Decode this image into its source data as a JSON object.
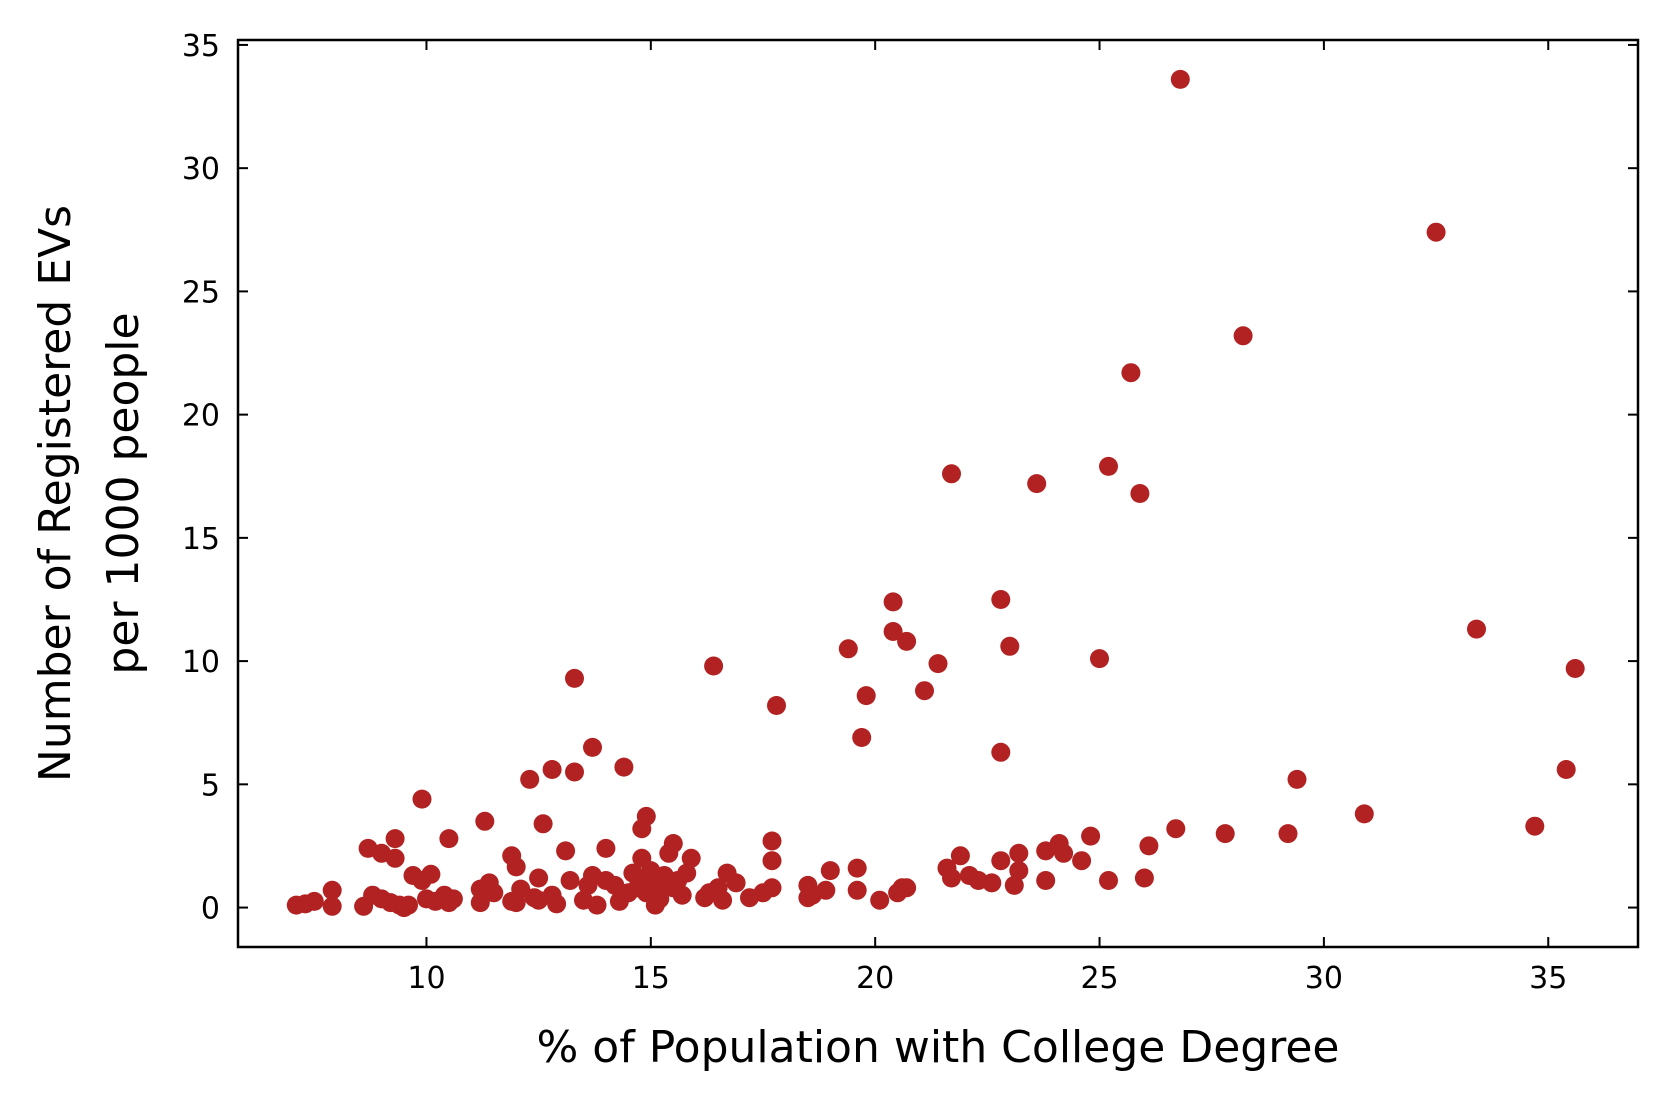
{
  "chart_data": {
    "type": "scatter",
    "title": "",
    "xlabel": "% of Population with College Degree",
    "ylabel_lines": [
      "Number of Registered EVs",
      "per 1000 people"
    ],
    "xlim": [
      5.8,
      37.0
    ],
    "ylim": [
      -1.6,
      35.2
    ],
    "xticks": [
      10,
      15,
      20,
      25,
      30,
      35
    ],
    "yticks": [
      0,
      5,
      10,
      15,
      20,
      25,
      30,
      35
    ],
    "grid": false,
    "marker_color": "#b22222",
    "points": [
      [
        7.1,
        0.1
      ],
      [
        7.3,
        0.15
      ],
      [
        7.5,
        0.25
      ],
      [
        7.9,
        0.7
      ],
      [
        7.9,
        0.05
      ],
      [
        8.6,
        0.05
      ],
      [
        8.7,
        2.4
      ],
      [
        8.8,
        0.5
      ],
      [
        9.0,
        2.2
      ],
      [
        9.0,
        0.35
      ],
      [
        9.2,
        0.2
      ],
      [
        9.3,
        2.0
      ],
      [
        9.3,
        2.8
      ],
      [
        9.4,
        0.1
      ],
      [
        9.5,
        0.0
      ],
      [
        9.6,
        0.1
      ],
      [
        9.7,
        1.3
      ],
      [
        9.9,
        4.4
      ],
      [
        9.9,
        1.1
      ],
      [
        10.0,
        0.35
      ],
      [
        10.1,
        1.35
      ],
      [
        10.2,
        0.25
      ],
      [
        10.4,
        0.5
      ],
      [
        10.5,
        0.2
      ],
      [
        10.5,
        2.8
      ],
      [
        10.6,
        0.35
      ],
      [
        11.2,
        0.2
      ],
      [
        11.2,
        0.75
      ],
      [
        11.3,
        3.5
      ],
      [
        11.4,
        1.0
      ],
      [
        11.5,
        0.6
      ],
      [
        11.9,
        2.1
      ],
      [
        11.9,
        0.25
      ],
      [
        12.0,
        1.65
      ],
      [
        12.0,
        0.2
      ],
      [
        12.1,
        0.75
      ],
      [
        12.3,
        5.2
      ],
      [
        12.4,
        0.4
      ],
      [
        12.5,
        1.2
      ],
      [
        12.5,
        0.3
      ],
      [
        12.6,
        3.4
      ],
      [
        12.8,
        5.6
      ],
      [
        12.8,
        0.5
      ],
      [
        12.9,
        0.15
      ],
      [
        13.1,
        2.3
      ],
      [
        13.2,
        1.1
      ],
      [
        13.3,
        9.3
      ],
      [
        13.3,
        5.5
      ],
      [
        13.5,
        0.3
      ],
      [
        13.6,
        0.9
      ],
      [
        13.7,
        6.5
      ],
      [
        13.7,
        1.3
      ],
      [
        13.8,
        0.1
      ],
      [
        14.0,
        1.1
      ],
      [
        14.0,
        2.4
      ],
      [
        14.2,
        0.9
      ],
      [
        14.3,
        0.25
      ],
      [
        14.4,
        5.7
      ],
      [
        14.5,
        0.6
      ],
      [
        14.6,
        1.4
      ],
      [
        14.7,
        0.8
      ],
      [
        14.8,
        2.0
      ],
      [
        14.8,
        1.2
      ],
      [
        14.8,
        3.2
      ],
      [
        14.9,
        3.7
      ],
      [
        14.9,
        0.6
      ],
      [
        15.0,
        1.0
      ],
      [
        15.0,
        1.5
      ],
      [
        15.1,
        0.1
      ],
      [
        15.2,
        0.35
      ],
      [
        15.2,
        0.6
      ],
      [
        15.3,
        1.3
      ],
      [
        15.4,
        2.2
      ],
      [
        15.5,
        2.6
      ],
      [
        15.5,
        0.8
      ],
      [
        15.6,
        1.1
      ],
      [
        15.7,
        0.5
      ],
      [
        15.8,
        1.4
      ],
      [
        15.9,
        2.0
      ],
      [
        16.2,
        0.4
      ],
      [
        16.3,
        0.6
      ],
      [
        16.4,
        9.8
      ],
      [
        16.5,
        0.8
      ],
      [
        16.6,
        0.3
      ],
      [
        16.7,
        1.4
      ],
      [
        16.9,
        1.0
      ],
      [
        17.2,
        0.4
      ],
      [
        17.5,
        0.6
      ],
      [
        17.7,
        0.8
      ],
      [
        17.7,
        2.7
      ],
      [
        17.7,
        1.9
      ],
      [
        17.8,
        8.2
      ],
      [
        18.5,
        0.9
      ],
      [
        18.5,
        0.4
      ],
      [
        18.6,
        0.5
      ],
      [
        18.9,
        0.7
      ],
      [
        19.0,
        1.5
      ],
      [
        19.4,
        10.5
      ],
      [
        19.6,
        1.6
      ],
      [
        19.6,
        0.7
      ],
      [
        19.7,
        6.9
      ],
      [
        19.8,
        8.6
      ],
      [
        20.1,
        0.3
      ],
      [
        20.4,
        12.4
      ],
      [
        20.4,
        11.2
      ],
      [
        20.5,
        0.6
      ],
      [
        20.6,
        0.8
      ],
      [
        20.7,
        10.8
      ],
      [
        20.7,
        0.8
      ],
      [
        21.1,
        8.8
      ],
      [
        21.4,
        9.9
      ],
      [
        21.6,
        1.6
      ],
      [
        21.7,
        1.2
      ],
      [
        21.7,
        17.6
      ],
      [
        21.9,
        2.1
      ],
      [
        22.1,
        1.3
      ],
      [
        22.3,
        1.1
      ],
      [
        22.6,
        1.0
      ],
      [
        22.8,
        12.5
      ],
      [
        22.8,
        6.3
      ],
      [
        22.8,
        1.9
      ],
      [
        23.0,
        10.6
      ],
      [
        23.1,
        0.9
      ],
      [
        23.2,
        1.5
      ],
      [
        23.2,
        2.2
      ],
      [
        23.6,
        17.2
      ],
      [
        23.8,
        2.3
      ],
      [
        23.8,
        1.1
      ],
      [
        24.1,
        2.6
      ],
      [
        24.2,
        2.2
      ],
      [
        24.6,
        1.9
      ],
      [
        24.8,
        2.9
      ],
      [
        25.0,
        10.1
      ],
      [
        25.2,
        1.1
      ],
      [
        25.2,
        17.9
      ],
      [
        25.7,
        21.7
      ],
      [
        25.9,
        16.8
      ],
      [
        26.0,
        1.2
      ],
      [
        26.1,
        2.5
      ],
      [
        26.7,
        3.2
      ],
      [
        26.8,
        33.6
      ],
      [
        27.8,
        3.0
      ],
      [
        28.2,
        23.2
      ],
      [
        29.2,
        3.0
      ],
      [
        29.4,
        5.2
      ],
      [
        30.9,
        3.8
      ],
      [
        32.5,
        27.4
      ],
      [
        33.4,
        11.3
      ],
      [
        34.7,
        3.3
      ],
      [
        35.4,
        5.6
      ],
      [
        35.6,
        9.7
      ]
    ]
  }
}
